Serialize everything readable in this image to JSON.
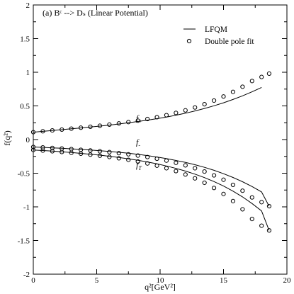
{
  "chart_data": {
    "type": "line",
    "title": "",
    "xlabel": "q²[GeV²]",
    "ylabel": "f(q²)",
    "xlim": [
      0,
      20
    ],
    "ylim": [
      -2,
      2
    ],
    "xticks": [
      0,
      5,
      10,
      15,
      20
    ],
    "yticks": [
      -2,
      -1.5,
      -1,
      -0.5,
      0,
      0.5,
      1,
      1.5,
      2
    ],
    "xtick_labels": [
      "0",
      "5",
      "10",
      "15",
      "20"
    ],
    "ytick_labels": [
      "-2",
      "-1.5",
      "-1",
      "-0.5",
      "0",
      "0.5",
      "1",
      "1.5",
      "2"
    ],
    "grid": false,
    "legend_position": "top-right",
    "annotation": "(a) Bᶜ --> Dₛ (Linear Potential)",
    "legend": [
      {
        "label": "LFQM",
        "style": "line"
      },
      {
        "label": "Double pole fit",
        "style": "circle"
      }
    ],
    "series": [
      {
        "name": "f₊",
        "curve_label": "f",
        "curve_sub": "+",
        "label_at": [
          8.1,
          0.28
        ],
        "x": [
          0,
          0.75,
          1.5,
          2.25,
          3,
          3.75,
          4.5,
          5.25,
          6,
          6.75,
          7.5,
          8.25,
          9,
          9.75,
          10.5,
          11.25,
          12,
          12.75,
          13.5,
          14.25,
          15,
          15.75,
          16.5,
          17.25,
          18
        ],
        "line": [
          0.11,
          0.122,
          0.134,
          0.147,
          0.16,
          0.173,
          0.186,
          0.2,
          0.215,
          0.232,
          0.25,
          0.268,
          0.288,
          0.31,
          0.335,
          0.362,
          0.392,
          0.425,
          0.462,
          0.502,
          0.546,
          0.596,
          0.65,
          0.71,
          0.775
        ],
        "fit_x": [
          0,
          0.75,
          1.5,
          2.25,
          3,
          3.75,
          4.5,
          5.25,
          6,
          6.75,
          7.5,
          8.25,
          9,
          9.75,
          10.5,
          11.25,
          12,
          12.75,
          13.5,
          14.25,
          15,
          15.75,
          16.5,
          17.25,
          18,
          18.6
        ],
        "fit": [
          0.11,
          0.123,
          0.136,
          0.148,
          0.162,
          0.176,
          0.19,
          0.205,
          0.222,
          0.24,
          0.26,
          0.281,
          0.305,
          0.332,
          0.362,
          0.396,
          0.434,
          0.477,
          0.525,
          0.579,
          0.64,
          0.708,
          0.785,
          0.87,
          0.93,
          0.98
        ]
      },
      {
        "name": "f₋",
        "curve_label": "f",
        "curve_sub": "-",
        "label_at": [
          8.1,
          -0.08
        ],
        "x": [
          0,
          0.75,
          1.5,
          2.25,
          3,
          3.75,
          4.5,
          5.25,
          6,
          6.75,
          7.5,
          8.25,
          9,
          9.75,
          10.5,
          11.25,
          12,
          12.75,
          13.5,
          14.25,
          15,
          15.75,
          16.5,
          17.25,
          18,
          18.6
        ],
        "line": [
          -0.11,
          -0.116,
          -0.123,
          -0.13,
          -0.138,
          -0.146,
          -0.155,
          -0.165,
          -0.176,
          -0.189,
          -0.203,
          -0.22,
          -0.238,
          -0.259,
          -0.283,
          -0.31,
          -0.34,
          -0.374,
          -0.413,
          -0.457,
          -0.507,
          -0.563,
          -0.626,
          -0.698,
          -0.778,
          -0.99
        ],
        "fit_x": [
          0,
          0.75,
          1.5,
          2.25,
          3,
          3.75,
          4.5,
          5.25,
          6,
          6.75,
          7.5,
          8.25,
          9,
          9.75,
          10.5,
          11.25,
          12,
          12.75,
          13.5,
          14.25,
          15,
          15.75,
          16.5,
          17.25,
          18,
          18.6
        ],
        "fit": [
          -0.11,
          -0.117,
          -0.125,
          -0.133,
          -0.142,
          -0.152,
          -0.162,
          -0.174,
          -0.187,
          -0.202,
          -0.219,
          -0.238,
          -0.26,
          -0.285,
          -0.313,
          -0.346,
          -0.383,
          -0.426,
          -0.475,
          -0.532,
          -0.597,
          -0.673,
          -0.76,
          -0.86,
          -0.93,
          -0.99
        ]
      },
      {
        "name": "f_T",
        "curve_label": "f",
        "curve_sub": "T",
        "label_at": [
          8.1,
          -0.42
        ],
        "x": [
          0,
          0.75,
          1.5,
          2.25,
          3,
          3.75,
          4.5,
          5.25,
          6,
          6.75,
          7.5,
          8.25,
          9,
          9.75,
          10.5,
          11.25,
          12,
          12.75,
          13.5,
          14.25,
          15,
          15.75,
          16.5,
          17.25,
          18,
          18.6
        ],
        "line": [
          -0.155,
          -0.163,
          -0.172,
          -0.182,
          -0.193,
          -0.205,
          -0.218,
          -0.232,
          -0.248,
          -0.266,
          -0.286,
          -0.308,
          -0.333,
          -0.361,
          -0.393,
          -0.428,
          -0.468,
          -0.514,
          -0.565,
          -0.624,
          -0.69,
          -0.766,
          -0.852,
          -0.95,
          -1.06,
          -1.35
        ],
        "fit_x": [
          0,
          0.75,
          1.5,
          2.25,
          3,
          3.75,
          4.5,
          5.25,
          6,
          6.75,
          7.5,
          8.25,
          9,
          9.75,
          10.5,
          11.25,
          12,
          12.75,
          13.5,
          14.25,
          15,
          15.75,
          16.5,
          17.25,
          18,
          18.6
        ],
        "fit": [
          -0.155,
          -0.164,
          -0.174,
          -0.185,
          -0.197,
          -0.21,
          -0.224,
          -0.24,
          -0.258,
          -0.278,
          -0.301,
          -0.326,
          -0.355,
          -0.388,
          -0.426,
          -0.469,
          -0.519,
          -0.576,
          -0.642,
          -0.719,
          -0.809,
          -0.914,
          -1.036,
          -1.18,
          -1.28,
          -1.35
        ]
      }
    ]
  }
}
